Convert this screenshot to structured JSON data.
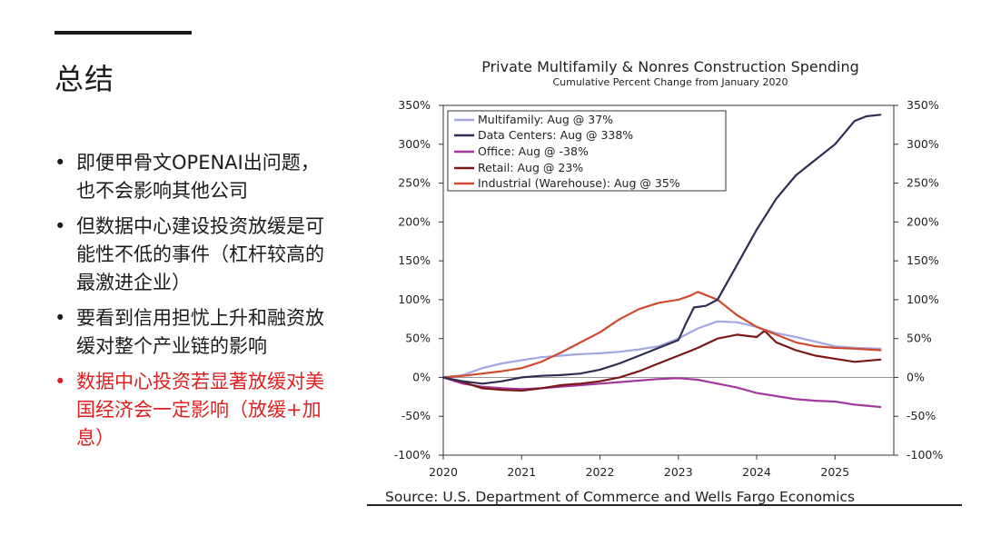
{
  "slide": {
    "title": "总结",
    "bullets": [
      {
        "text": "即便甲骨文OPENAI出问题，也不会影响其他公司",
        "highlight": false
      },
      {
        "text": "但数据中心建设投资放缓是可能性不低的事件（杠杆较高的最激进企业）",
        "highlight": false
      },
      {
        "text": "要看到信用担忧上升和融资放缓对整个产业链的影响",
        "highlight": false
      },
      {
        "text": "数据中心投资若显著放缓对美国经济会一定影响（放缓+加息）",
        "highlight": true
      }
    ],
    "bullet_symbol": "•"
  },
  "chart_data": {
    "type": "line",
    "title": "Private Multifamily & Nonres Construction Spending",
    "subtitle": "Cumulative Percent Change from January 2020",
    "source": "Source: U.S. Department of Commerce and Wells Fargo Economics",
    "xlim": [
      2020,
      2025.75
    ],
    "ylim": [
      -100,
      350
    ],
    "x_ticks": [
      2020,
      2021,
      2022,
      2023,
      2024,
      2025
    ],
    "x_tick_labels": [
      "2020",
      "2021",
      "2022",
      "2023",
      "2024",
      "2025"
    ],
    "y_ticks": [
      -100,
      -50,
      0,
      50,
      100,
      150,
      200,
      250,
      300,
      350
    ],
    "y_tick_labels": [
      "-100%",
      "-50%",
      "0%",
      "50%",
      "100%",
      "150%",
      "200%",
      "250%",
      "300%",
      "350%"
    ],
    "legend_position": "top-left",
    "series": [
      {
        "name": "Multifamily",
        "label": "Multifamily: Aug @ 37%",
        "color": "#a3a6e3",
        "x": [
          2020,
          2020.25,
          2020.5,
          2020.75,
          2021,
          2021.25,
          2021.5,
          2021.75,
          2022,
          2022.25,
          2022.5,
          2022.75,
          2023,
          2023.25,
          2023.5,
          2023.75,
          2024,
          2024.25,
          2024.5,
          2024.75,
          2025,
          2025.25,
          2025.58
        ],
        "y": [
          0,
          3,
          12,
          18,
          22,
          26,
          28,
          30,
          31,
          33,
          36,
          40,
          50,
          63,
          72,
          71,
          65,
          57,
          52,
          46,
          40,
          38,
          37
        ]
      },
      {
        "name": "Data Centers",
        "label": "Data Centers: Aug @ 338%",
        "color": "#2e2e52",
        "x": [
          2020,
          2020.25,
          2020.5,
          2020.75,
          2021,
          2021.25,
          2021.5,
          2021.75,
          2022,
          2022.25,
          2022.5,
          2022.75,
          2023,
          2023.1,
          2023.2,
          2023.35,
          2023.5,
          2023.75,
          2024,
          2024.25,
          2024.5,
          2024.75,
          2025,
          2025.25,
          2025.4,
          2025.58
        ],
        "y": [
          0,
          -5,
          -8,
          -5,
          0,
          2,
          3,
          5,
          10,
          18,
          28,
          38,
          48,
          70,
          90,
          92,
          100,
          145,
          190,
          230,
          260,
          280,
          300,
          330,
          336,
          338
        ]
      },
      {
        "name": "Office",
        "label": "Office: Aug @ -38%",
        "color": "#a2389e",
        "x": [
          2020,
          2020.25,
          2020.5,
          2020.75,
          2021,
          2021.25,
          2021.5,
          2021.75,
          2022,
          2022.25,
          2022.5,
          2022.75,
          2023,
          2023.25,
          2023.5,
          2023.75,
          2024,
          2024.25,
          2024.5,
          2024.75,
          2025,
          2025.25,
          2025.58
        ],
        "y": [
          0,
          -8,
          -12,
          -14,
          -15,
          -14,
          -12,
          -10,
          -8,
          -6,
          -4,
          -2,
          -1,
          -3,
          -8,
          -13,
          -20,
          -24,
          -28,
          -30,
          -31,
          -35,
          -38
        ]
      },
      {
        "name": "Retail",
        "label": "Retail: Aug @ 23%",
        "color": "#7a1818",
        "x": [
          2020,
          2020.25,
          2020.5,
          2020.75,
          2021,
          2021.25,
          2021.5,
          2021.75,
          2022,
          2022.25,
          2022.5,
          2022.75,
          2023,
          2023.25,
          2023.5,
          2023.75,
          2024,
          2024.1,
          2024.25,
          2024.5,
          2024.75,
          2025,
          2025.25,
          2025.58
        ],
        "y": [
          0,
          -6,
          -14,
          -16,
          -17,
          -14,
          -10,
          -8,
          -5,
          0,
          8,
          18,
          28,
          38,
          50,
          55,
          52,
          60,
          45,
          35,
          28,
          24,
          20,
          23
        ]
      },
      {
        "name": "Industrial (Warehouse)",
        "label": "Industrial (Warehouse): Aug @ 35%",
        "color": "#cf4a2e",
        "x": [
          2020,
          2020.25,
          2020.5,
          2020.75,
          2021,
          2021.25,
          2021.5,
          2021.75,
          2022,
          2022.25,
          2022.5,
          2022.75,
          2023,
          2023.15,
          2023.25,
          2023.5,
          2023.75,
          2024,
          2024.25,
          2024.5,
          2024.75,
          2025,
          2025.25,
          2025.58
        ],
        "y": [
          0,
          2,
          5,
          8,
          12,
          20,
          32,
          45,
          58,
          75,
          88,
          96,
          100,
          105,
          110,
          100,
          80,
          65,
          55,
          45,
          40,
          38,
          37,
          35
        ]
      }
    ]
  }
}
